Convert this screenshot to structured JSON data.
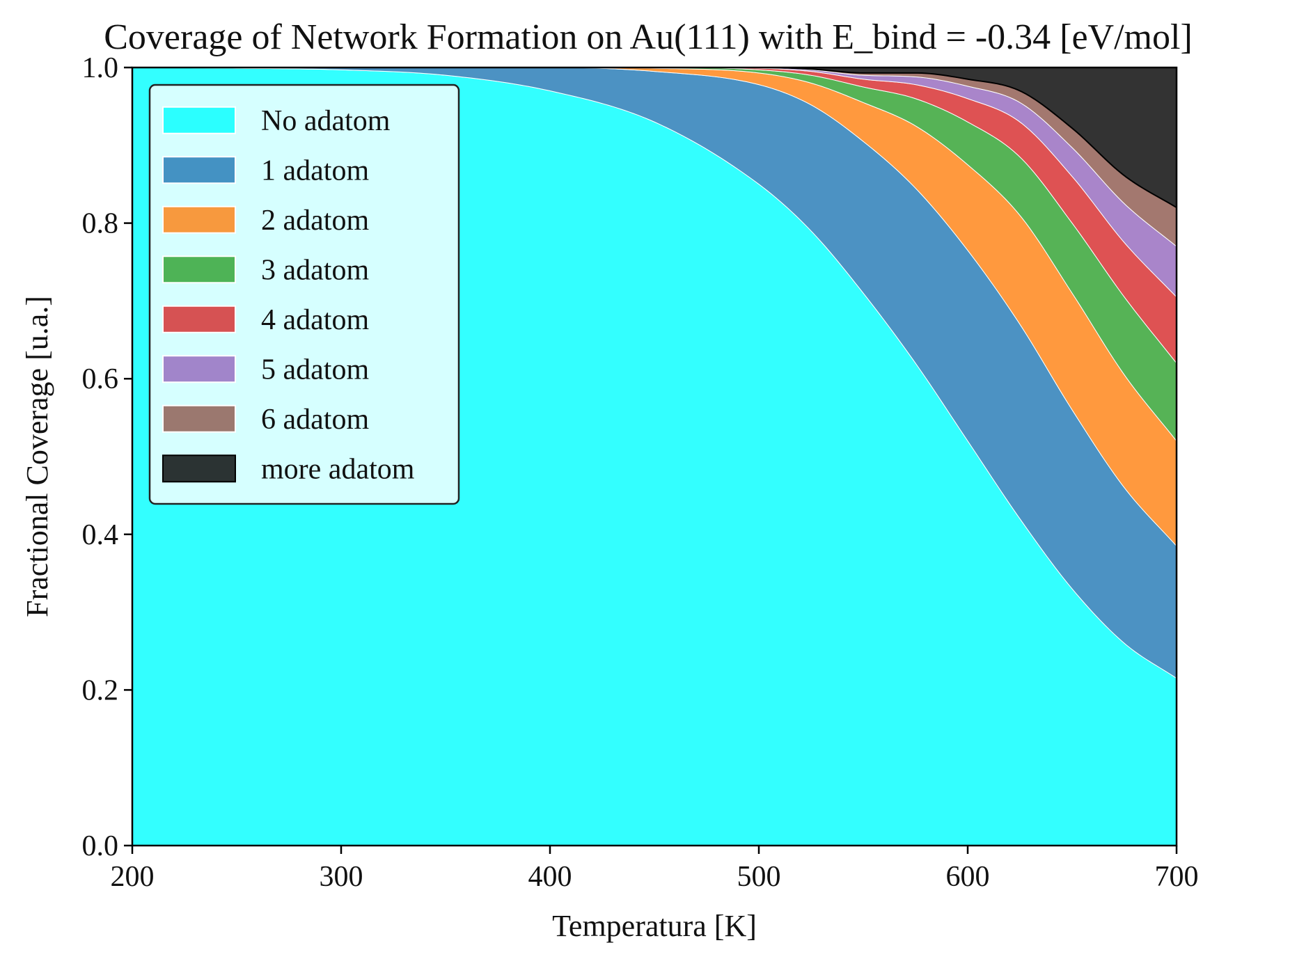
{
  "chart_data": {
    "type": "area",
    "stacked": true,
    "title": "Coverage of Network Formation on Au(111) with E_bind = -0.34 [eV/mol]",
    "xlabel": "Temperatura [K]",
    "ylabel": "Fractional Coverage [u.a.]",
    "xlim": [
      200,
      700
    ],
    "ylim": [
      0.0,
      1.0
    ],
    "x_ticks": [
      "200",
      "300",
      "400",
      "500",
      "600",
      "700"
    ],
    "y_ticks": [
      "0.0",
      "0.2",
      "0.4",
      "0.6",
      "0.8",
      "1.0"
    ],
    "grid": false,
    "legend_position": "top-left",
    "x": [
      200,
      250,
      300,
      350,
      400,
      450,
      500,
      525,
      550,
      575,
      600,
      625,
      650,
      675,
      700
    ],
    "series": [
      {
        "name": "No adatom",
        "color": "#00ffff",
        "values": [
          1.0,
          0.999,
          0.997,
          0.99,
          0.97,
          0.93,
          0.85,
          0.79,
          0.71,
          0.62,
          0.52,
          0.42,
          0.33,
          0.26,
          0.215
        ]
      },
      {
        "name": "1 adatom",
        "color": "#1f77b4",
        "values": [
          0.0,
          0.001,
          0.003,
          0.01,
          0.03,
          0.065,
          0.128,
          0.162,
          0.195,
          0.225,
          0.245,
          0.25,
          0.23,
          0.2,
          0.17
        ]
      },
      {
        "name": "2 adatom",
        "color": "#ff7f0e",
        "values": [
          0.0,
          0.0,
          0.0,
          0.0,
          0.0,
          0.004,
          0.015,
          0.028,
          0.05,
          0.08,
          0.11,
          0.14,
          0.15,
          0.145,
          0.135
        ]
      },
      {
        "name": "3 adatom",
        "color": "#2ca02c",
        "values": [
          0.0,
          0.0,
          0.0,
          0.0,
          0.0,
          0.001,
          0.004,
          0.01,
          0.02,
          0.035,
          0.055,
          0.075,
          0.09,
          0.1,
          0.1
        ]
      },
      {
        "name": "4 adatom",
        "color": "#d62728",
        "values": [
          0.0,
          0.0,
          0.0,
          0.0,
          0.0,
          0.0,
          0.002,
          0.005,
          0.01,
          0.018,
          0.03,
          0.045,
          0.06,
          0.07,
          0.085
        ]
      },
      {
        "name": "5 adatom",
        "color": "#9467bd",
        "values": [
          0.0,
          0.0,
          0.0,
          0.0,
          0.0,
          0.0,
          0.001,
          0.002,
          0.005,
          0.01,
          0.016,
          0.025,
          0.037,
          0.05,
          0.065
        ]
      },
      {
        "name": "6 adatom",
        "color": "#8c564b",
        "values": [
          0.0,
          0.0,
          0.0,
          0.0,
          0.0,
          0.0,
          0.0,
          0.001,
          0.003,
          0.005,
          0.009,
          0.015,
          0.025,
          0.036,
          0.05
        ]
      },
      {
        "name": "more adatom",
        "color": "#000000",
        "values": [
          0.0,
          0.0,
          0.0,
          0.0,
          0.0,
          0.0,
          0.0,
          0.002,
          0.007,
          0.007,
          0.015,
          0.03,
          0.078,
          0.139,
          0.18
        ]
      }
    ]
  }
}
